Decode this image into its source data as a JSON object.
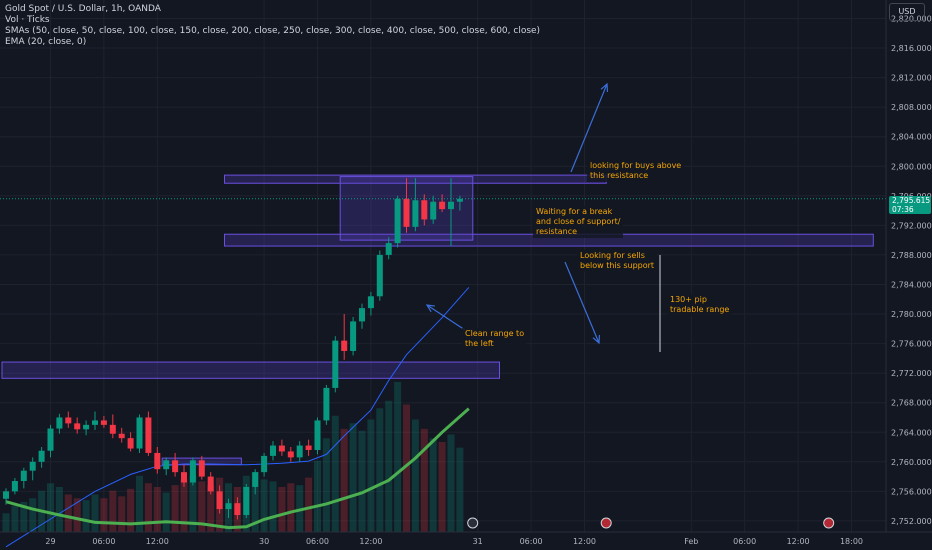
{
  "legend": {
    "symbol": "Gold Spot / U.S. Dollar, 1h, OANDA",
    "volume": "Vol · Ticks",
    "smas": "SMAs (50, close, 50, close, 100, close, 150, close, 200, close, 250, close, 300, close, 400, close, 500, close, 600, close)",
    "ema": "EMA (20, close, 0)"
  },
  "currency": "USD",
  "price_label": {
    "price": "2,795.615",
    "countdown": "07:36"
  },
  "notes": {
    "buys": "looking for buys above\nthis resistance",
    "wait": "Waiting for a break\nand close of support/\nresistance",
    "sells": "Looking for sells\nbelow this support",
    "pip": "130+ pip\ntradable range",
    "range": "Clean range to\nthe left"
  },
  "colors": {
    "up": "#089981",
    "down": "#f23645",
    "zone": "#5b3fc7",
    "annotation": "#f7a600",
    "ema": "#4caf50",
    "sma": "#2962ff"
  },
  "chart_data": {
    "type": "candlestick",
    "y_ticks": [
      "2,820.000",
      "2,816.000",
      "2,812.000",
      "2,808.000",
      "2,804.000",
      "2,800.000",
      "2,796.000",
      "2,792.000",
      "2,788.000",
      "2,784.000",
      "2,780.000",
      "2,776.000",
      "2,772.000",
      "2,768.000",
      "2,764.000",
      "2,760.000",
      "2,756.000",
      "2,752.000"
    ],
    "x_ticks": [
      {
        "label": "29",
        "hour": 5
      },
      {
        "label": "06:00",
        "hour": 11
      },
      {
        "label": "12:00",
        "hour": 17
      },
      {
        "label": "30",
        "hour": 29
      },
      {
        "label": "06:00",
        "hour": 35
      },
      {
        "label": "12:00",
        "hour": 41
      },
      {
        "label": "31",
        "hour": 53
      },
      {
        "label": "06:00",
        "hour": 59
      },
      {
        "label": "12:00",
        "hour": 65
      },
      {
        "label": "Feb",
        "hour": 77
      },
      {
        "label": "06:00",
        "hour": 83
      },
      {
        "label": "12:00",
        "hour": 89
      },
      {
        "label": "18:00",
        "hour": 95
      }
    ],
    "ylim": [
      2750.5,
      2822.5
    ],
    "candles": [
      [
        2755.0,
        2756.4,
        2754.2,
        2756.0
      ],
      [
        2756.0,
        2757.8,
        2755.6,
        2757.4
      ],
      [
        2757.4,
        2759.2,
        2756.4,
        2758.8
      ],
      [
        2758.8,
        2760.6,
        2757.5,
        2760.0
      ],
      [
        2760.0,
        2762.0,
        2759.2,
        2761.5
      ],
      [
        2761.5,
        2765.0,
        2760.6,
        2764.5
      ],
      [
        2764.5,
        2766.5,
        2763.8,
        2766.0
      ],
      [
        2766.0,
        2766.8,
        2764.6,
        2765.2
      ],
      [
        2765.2,
        2766.0,
        2763.8,
        2764.4
      ],
      [
        2764.4,
        2765.6,
        2763.6,
        2765.0
      ],
      [
        2765.0,
        2766.8,
        2764.3,
        2765.6
      ],
      [
        2765.6,
        2766.2,
        2764.6,
        2765.0
      ],
      [
        2765.0,
        2766.4,
        2763.2,
        2763.8
      ],
      [
        2763.8,
        2764.6,
        2762.6,
        2763.2
      ],
      [
        2763.2,
        2764.0,
        2761.4,
        2761.8
      ],
      [
        2761.8,
        2766.4,
        2761.2,
        2766.0
      ],
      [
        2766.0,
        2766.8,
        2760.8,
        2761.2
      ],
      [
        2761.2,
        2762.0,
        2758.4,
        2759.0
      ],
      [
        2759.0,
        2760.6,
        2758.2,
        2760.2
      ],
      [
        2760.2,
        2761.2,
        2758.0,
        2758.6
      ],
      [
        2758.6,
        2759.6,
        2756.6,
        2757.2
      ],
      [
        2757.2,
        2760.6,
        2756.8,
        2760.2
      ],
      [
        2760.2,
        2760.8,
        2757.6,
        2758.0
      ],
      [
        2758.0,
        2758.6,
        2755.6,
        2756.0
      ],
      [
        2756.0,
        2756.8,
        2753.0,
        2753.6
      ],
      [
        2753.6,
        2755.0,
        2752.4,
        2754.4
      ],
      [
        2754.4,
        2755.2,
        2752.2,
        2752.8
      ],
      [
        2752.8,
        2757.0,
        2752.4,
        2756.6
      ],
      [
        2756.6,
        2759.0,
        2755.6,
        2758.6
      ],
      [
        2758.6,
        2761.2,
        2758.0,
        2760.8
      ],
      [
        2760.8,
        2762.8,
        2760.2,
        2762.2
      ],
      [
        2762.2,
        2763.0,
        2760.8,
        2761.4
      ],
      [
        2761.4,
        2762.0,
        2760.0,
        2760.6
      ],
      [
        2760.6,
        2762.8,
        2760.0,
        2762.2
      ],
      [
        2762.2,
        2763.0,
        2760.8,
        2761.6
      ],
      [
        2761.6,
        2766.0,
        2761.0,
        2765.6
      ],
      [
        2765.6,
        2770.4,
        2765.0,
        2770.0
      ],
      [
        2770.0,
        2777.0,
        2769.4,
        2776.4
      ],
      [
        2776.4,
        2780.0,
        2773.8,
        2775.0
      ],
      [
        2775.0,
        2779.6,
        2774.4,
        2779.0
      ],
      [
        2779.0,
        2781.4,
        2778.0,
        2780.8
      ],
      [
        2780.8,
        2783.0,
        2779.8,
        2782.4
      ],
      [
        2782.4,
        2788.6,
        2781.8,
        2788.0
      ],
      [
        2788.0,
        2790.4,
        2787.4,
        2789.6
      ],
      [
        2789.6,
        2796.0,
        2789.0,
        2795.6
      ],
      [
        2795.6,
        2798.4,
        2791.0,
        2791.8
      ],
      [
        2791.8,
        2798.4,
        2791.2,
        2795.4
      ],
      [
        2795.4,
        2796.2,
        2792.0,
        2792.8
      ],
      [
        2792.8,
        2796.0,
        2792.2,
        2795.2
      ],
      [
        2795.2,
        2796.2,
        2793.8,
        2794.2
      ],
      [
        2794.2,
        2798.4,
        2789.2,
        2795.2
      ],
      [
        2795.2,
        2796.0,
        2794.0,
        2795.6
      ]
    ],
    "volume": [
      10,
      14,
      16,
      18,
      22,
      26,
      24,
      20,
      18,
      17,
      20,
      18,
      22,
      19,
      23,
      30,
      26,
      24,
      21,
      25,
      28,
      30,
      27,
      25,
      29,
      26,
      24,
      30,
      32,
      28,
      27,
      24,
      26,
      25,
      29,
      38,
      50,
      62,
      55,
      58,
      54,
      60,
      66,
      70,
      80,
      68,
      60,
      55,
      50,
      48,
      52,
      45
    ],
    "sma50": [
      [
        0,
        2748.5
      ],
      [
        6,
        2753
      ],
      [
        10,
        2756
      ],
      [
        14,
        2758.3
      ],
      [
        17,
        2759.4
      ],
      [
        20,
        2759.7
      ],
      [
        23,
        2759.7
      ],
      [
        27,
        2759.6
      ],
      [
        31,
        2759.8
      ],
      [
        34,
        2760.1
      ],
      [
        36,
        2761.0
      ],
      [
        38,
        2763.5
      ],
      [
        41,
        2767
      ],
      [
        43,
        2771
      ],
      [
        45,
        2774.5
      ],
      [
        47,
        2777
      ],
      [
        49,
        2779.5
      ],
      [
        52,
        2783.6
      ]
    ],
    "ema20": [
      [
        0,
        2754.6
      ],
      [
        3,
        2753.6
      ],
      [
        6,
        2752.8
      ],
      [
        10,
        2751.8
      ],
      [
        14,
        2751.6
      ],
      [
        18,
        2751.9
      ],
      [
        22,
        2751.6
      ],
      [
        25,
        2751.1
      ],
      [
        27,
        2751.2
      ],
      [
        29,
        2752.2
      ],
      [
        32,
        2753.2
      ],
      [
        36,
        2754.3
      ],
      [
        40,
        2755.8
      ],
      [
        43,
        2757.5
      ],
      [
        46,
        2760.5
      ],
      [
        49,
        2764.0
      ],
      [
        52,
        2767.2
      ]
    ],
    "zones": [
      {
        "from_hour": 25,
        "to_hour": 97,
        "y_low": 2789.2,
        "y_high": 2790.8
      },
      {
        "from_hour": 25,
        "to_hour": 67,
        "y_low": 2797.7,
        "y_high": 2798.8
      },
      {
        "from_hour": 0,
        "to_hour": 55,
        "y_low": 2771.3,
        "y_high": 2773.5
      },
      {
        "from_hour": 38,
        "to_hour": 52,
        "y_low": 2790.0,
        "y_high": 2798.6
      },
      {
        "from_hour": 18,
        "to_hour": 26,
        "y_low": 2759.6,
        "y_high": 2760.5
      }
    ]
  }
}
